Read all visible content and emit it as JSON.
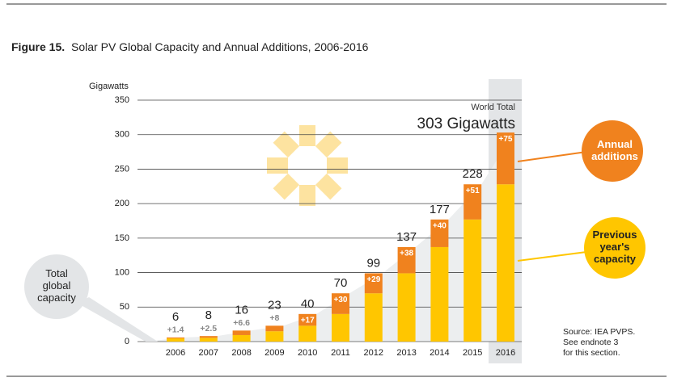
{
  "chart_data": {
    "type": "bar",
    "title_label": "Figure 15.",
    "title": "Solar PV Global Capacity and Annual Additions, 2006-2016",
    "y_axis_label": "Gigawatts",
    "categories": [
      "2006",
      "2007",
      "2008",
      "2009",
      "2010",
      "2011",
      "2012",
      "2013",
      "2014",
      "2015",
      "2016"
    ],
    "series": [
      {
        "name": "Previous year's capacity",
        "color": "#ffc600",
        "values": [
          4.6,
          5.5,
          9.4,
          15,
          23,
          40,
          70,
          99,
          137,
          177,
          228
        ]
      },
      {
        "name": "Annual additions",
        "color": "#f0821e",
        "values": [
          1.4,
          2.5,
          6.6,
          8,
          17,
          30,
          29,
          38,
          40,
          51,
          75
        ],
        "value_labels": [
          "+1.4",
          "+2.5",
          "+6.6",
          "+8",
          "+17",
          "+30",
          "+29",
          "+38",
          "+40",
          "+51",
          "+75"
        ]
      }
    ],
    "totals": [
      6,
      8,
      16,
      23,
      40,
      70,
      99,
      137,
      177,
      228,
      303
    ],
    "ylim": [
      0,
      350
    ],
    "yticks": [
      0,
      50,
      100,
      150,
      200,
      250,
      300,
      350
    ],
    "grid": true,
    "annotations": {
      "world_total": "World Total",
      "world_total_value": "303 Gigawatts",
      "annual_additions": [
        "Annual",
        "additions"
      ],
      "previous_capacity": [
        "Previous",
        "year's",
        "capacity"
      ],
      "total_capacity": [
        "Total",
        "global",
        "capacity"
      ],
      "source": [
        "Source: IEA PVPS.",
        "See endnote 3",
        "for this section."
      ]
    }
  }
}
